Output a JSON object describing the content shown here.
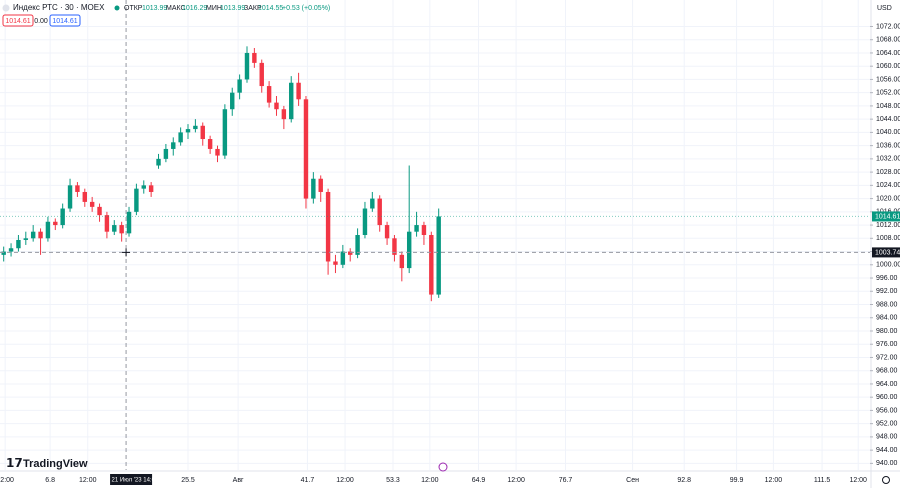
{
  "chart_data": {
    "type": "candlestick",
    "title": "Индекс РТС · 30 · MOEX",
    "ohlc_header": {
      "open_label": "ОТКР",
      "open": 1013.99,
      "high_label": "МАКС",
      "high": 1016.29,
      "low_label": "МИН",
      "low": 1013.99,
      "close_label": "ЗАКР",
      "close": 1014.55,
      "change": "+0.53 (+0.05%)"
    },
    "badges": {
      "price": 1014.61,
      "spread": "0.00",
      "price2": 1014.61
    },
    "currency": "USD",
    "logo": "TradingView",
    "up_color": "#089981",
    "down_color": "#f23645",
    "x": [
      0.5,
      1.5,
      2.5,
      3.5,
      4.5,
      5.5,
      6.5,
      7.5,
      8.5,
      9.5,
      10.5,
      11.5,
      12.5,
      13.5,
      14.5,
      15.5,
      16.5,
      17.5,
      18.5,
      19.5,
      20.5,
      21.5,
      22.5,
      23.5,
      24.5,
      25.5,
      26.5,
      27.5,
      28.5,
      29.5,
      30.5,
      31.5,
      32.5,
      33.5,
      34.5,
      35.5,
      36.5,
      37.5,
      38.5,
      39.5,
      40.5,
      41.5,
      42.5,
      43.5,
      44.5,
      45.5,
      46.5,
      47.5,
      48.5,
      49.5,
      50.5,
      51.5,
      52.5,
      53.5,
      54.5,
      55.5,
      56.5,
      57.5,
      58.5,
      59.5
    ],
    "open": [
      1003,
      1004,
      1005,
      1007.5,
      1008,
      1010,
      1008,
      1013,
      1012,
      1017,
      1024,
      1022,
      1019,
      1017.5,
      1015,
      1010,
      1012,
      1009.5,
      1016,
      1023,
      1024,
      1030,
      1032,
      1035,
      1037,
      1040,
      1041,
      1042,
      1038,
      1035,
      1033,
      1047,
      1052,
      1056,
      1064,
      1061,
      1054,
      1049,
      1047,
      1044,
      1055,
      1050,
      1020,
      1026,
      1022,
      1001,
      1000,
      1004,
      1003,
      1009,
      1017,
      1020,
      1012,
      1008,
      1003,
      999,
      1010,
      1012,
      1009,
      991
    ],
    "high": [
      1005.5,
      1006.5,
      1009,
      1010,
      1012,
      1011,
      1014.5,
      1014,
      1018.5,
      1026,
      1025,
      1023,
      1020.5,
      1018.5,
      1016,
      1013.5,
      1013,
      1017.5,
      1024.5,
      1025.5,
      1025,
      1033.5,
      1036.5,
      1038.5,
      1041.5,
      1042.5,
      1044,
      1043,
      1039,
      1036,
      1048.5,
      1053.5,
      1057.5,
      1066,
      1065.5,
      1062,
      1055.5,
      1051,
      1048,
      1057,
      1058,
      1051,
      1028,
      1027,
      1023,
      1003,
      1006,
      1005,
      1011,
      1019,
      1022,
      1021,
      1013,
      1009,
      1004,
      1030,
      1016,
      1013,
      1010,
      1017
    ],
    "low": [
      1001,
      1002.5,
      1004,
      1006,
      1007,
      1003,
      1007,
      1010.5,
      1011,
      1016,
      1020.5,
      1017.5,
      1016,
      1013,
      1008,
      1009,
      1007,
      1008.5,
      1015,
      1021.5,
      1020.5,
      1029,
      1031,
      1033,
      1036,
      1038,
      1040,
      1036,
      1033.5,
      1031,
      1032,
      1045,
      1050,
      1055,
      1059.5,
      1052,
      1047.5,
      1045,
      1041,
      1043,
      1048,
      1017,
      1018.5,
      1019,
      997,
      997.5,
      999,
      1001,
      1002,
      1008,
      1016,
      1010,
      1006,
      1001,
      995,
      997.5,
      1008.5,
      1006,
      989,
      990
    ],
    "close": [
      1004,
      1005,
      1007.5,
      1008,
      1010,
      1008,
      1013,
      1012,
      1017,
      1024,
      1022,
      1019,
      1017.5,
      1015,
      1010,
      1012,
      1009.5,
      1016,
      1023,
      1024,
      1022,
      1032,
      1035,
      1037,
      1040,
      1041,
      1042,
      1038,
      1035,
      1033,
      1047,
      1052,
      1056,
      1064,
      1061,
      1054,
      1049,
      1047,
      1044,
      1055,
      1050,
      1020,
      1026,
      1022,
      1001,
      1000,
      1004,
      1003,
      1009,
      1017,
      1020,
      1012,
      1008,
      1003,
      999,
      1010,
      1012,
      1009,
      991,
      1014.61
    ],
    "xlim": [
      0,
      118
    ],
    "ylim": [
      938,
      1080
    ],
    "xticks": [
      {
        "value": 0.7,
        "label": "12:00"
      },
      6.8,
      {
        "value": 11.9,
        "label": "12:00"
      },
      25.5,
      {
        "value": 32.3,
        "label": "Авг"
      },
      41.7,
      {
        "value": 46.8,
        "label": "12:00"
      },
      53.3,
      {
        "value": 58.3,
        "label": "12:00"
      },
      64.9,
      {
        "value": 70,
        "label": "12:00"
      },
      76.7,
      {
        "value": 85.8,
        "label": "Сен"
      },
      92.8,
      99.9,
      {
        "value": 104.9,
        "label": "12:00"
      },
      111.5,
      {
        "value": 116.4,
        "label": "12:00"
      }
    ],
    "yticks": [
      {
        "value": 940,
        "label": "940.00"
      },
      {
        "value": 944,
        "label": "944.00"
      },
      {
        "value": 948,
        "label": "948.00"
      },
      {
        "value": 952,
        "label": "952.00"
      },
      {
        "value": 956,
        "label": "956.00"
      },
      {
        "value": 960,
        "label": "960.00"
      },
      {
        "value": 964,
        "label": "964.00"
      },
      {
        "value": 968,
        "label": "968.00"
      },
      {
        "value": 972,
        "label": "972.00"
      },
      {
        "value": 976,
        "label": "976.00"
      },
      {
        "value": 980,
        "label": "980.00"
      },
      {
        "value": 984,
        "label": "984.00"
      },
      {
        "value": 988,
        "label": "988.00"
      },
      {
        "value": 992,
        "label": "992.00"
      },
      {
        "value": 996,
        "label": "996.00"
      },
      {
        "value": 1000,
        "label": "1000.00"
      },
      {
        "value": 1004,
        "label": "1004.00"
      },
      {
        "value": 1008,
        "label": "1008.00"
      },
      {
        "value": 1012,
        "label": "1012.00"
      },
      {
        "value": 1016,
        "label": "1016.00"
      },
      {
        "value": 1020,
        "label": "1020.00"
      },
      {
        "value": 1024,
        "label": "1024.00"
      },
      {
        "value": 1028,
        "label": "1028.00"
      },
      {
        "value": 1032,
        "label": "1032.00"
      },
      {
        "value": 1036,
        "label": "1036.00"
      },
      {
        "value": 1040,
        "label": "1040.00"
      },
      {
        "value": 1044,
        "label": "1044.00"
      },
      {
        "value": 1048,
        "label": "1048.00"
      },
      {
        "value": 1052,
        "label": "1052.00"
      },
      {
        "value": 1056,
        "label": "1056.00"
      },
      {
        "value": 1060,
        "label": "1060.00"
      },
      {
        "value": 1064,
        "label": "1064.00"
      },
      {
        "value": 1068,
        "label": "1068.00"
      },
      {
        "value": 1072,
        "label": "1072.00"
      }
    ],
    "crosshair": {
      "x": 17.1,
      "x_label": "пт 21 Июл '23 14:00",
      "y": 1003.74
    },
    "grid": true
  }
}
